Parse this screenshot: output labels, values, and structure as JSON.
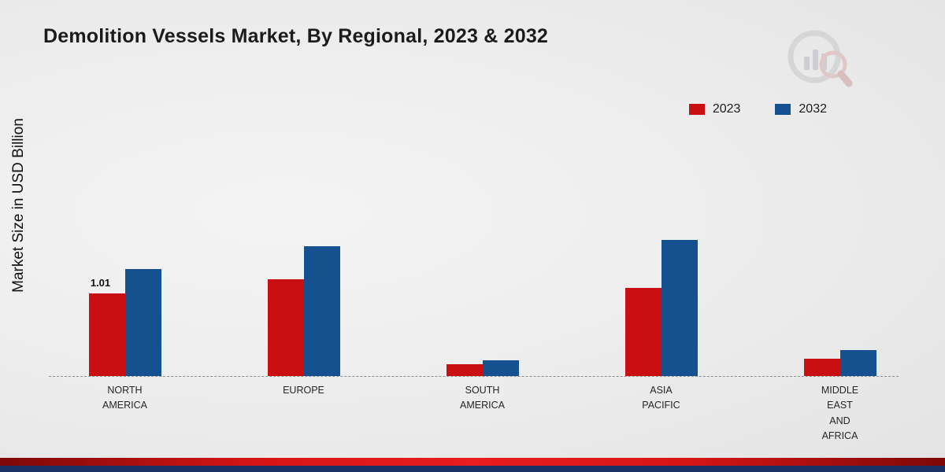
{
  "title": "Demolition Vessels Market, By Regional, 2023 & 2032",
  "ylabel": "Market Size in USD Billion",
  "legend": [
    {
      "label": "2023",
      "color": "#c90f12"
    },
    {
      "label": "2032",
      "color": "#15508f"
    }
  ],
  "chart_data": {
    "type": "bar",
    "title": "Demolition Vessels Market, By Regional, 2023 & 2032",
    "xlabel": "",
    "ylabel": "Market Size in USD Billion",
    "categories": [
      "NORTH AMERICA",
      "EUROPE",
      "SOUTH AMERICA",
      "ASIA PACIFIC",
      "MIDDLE EAST AND AFRICA"
    ],
    "series": [
      {
        "name": "2023",
        "color": "#c90f12",
        "values": [
          1.01,
          1.18,
          0.14,
          1.08,
          0.21
        ]
      },
      {
        "name": "2032",
        "color": "#15508f",
        "values": [
          1.31,
          1.59,
          0.19,
          1.66,
          0.32
        ]
      }
    ],
    "annotations": [
      {
        "category_index": 0,
        "series_index": 0,
        "text": "1.01"
      }
    ],
    "ylim": [
      0,
      1.8
    ],
    "grid": false,
    "baseline_style": "dashed",
    "legend_position": "top-right"
  },
  "footer_colors": {
    "red_band": "#e81d1d",
    "navy_band": "#1a3263"
  }
}
